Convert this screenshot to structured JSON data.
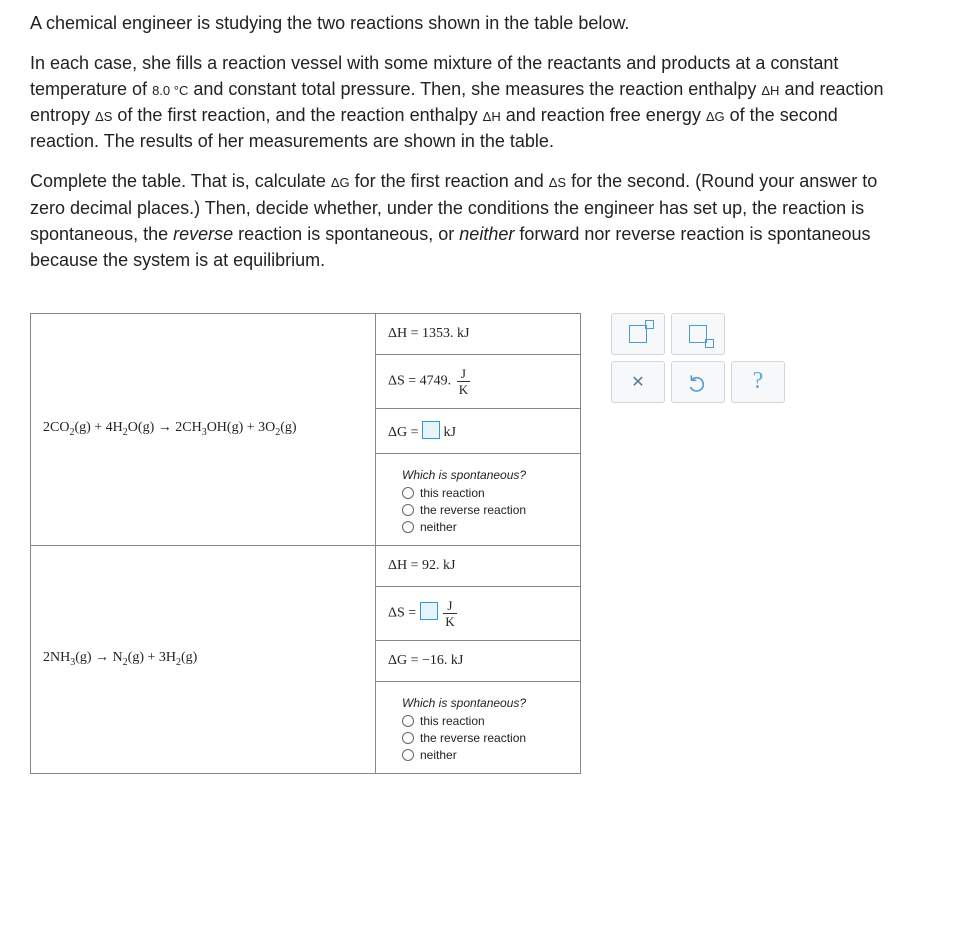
{
  "intro": {
    "p1a": "A chemical engineer is studying the two reactions shown in the table below.",
    "p2a": "In each case, she fills a reaction vessel with some mixture of the reactants and products at a constant temperature of ",
    "p2b": "8.0 °C",
    "p2c": " and constant total pressure. Then, she measures the reaction enthalpy ",
    "p2d": "ΔH",
    "p2e": " and reaction entropy ",
    "p2f": "ΔS",
    "p2g": " of the first reaction, and the reaction enthalpy ",
    "p2h": "ΔH",
    "p2i": " and reaction free energy ",
    "p2j": "ΔG",
    "p2k": " of the second reaction. The results of her measurements are shown in the table.",
    "p3a": "Complete the table. That is, calculate ",
    "p3b": "ΔG",
    "p3c": " for the first reaction and ",
    "p3d": "ΔS",
    "p3e": " for the second. (Round your answer to zero decimal places.) Then, decide whether, under the conditions the engineer has set up, the reaction is spontaneous, the ",
    "p3f": "reverse",
    "p3g": " reaction is spontaneous, or ",
    "p3h": "neither",
    "p3i": " forward nor reverse reaction is spontaneous because the system is at equilibrium."
  },
  "reactions": {
    "r1": {
      "equation_html": "2CO<sub>2</sub>(g) + 4H<sub>2</sub>O(g) → 2CH<sub>3</sub>OH(g) + 3O<sub>2</sub>(g)",
      "dH": "ΔH  =  1353. kJ",
      "dS_prefix": "ΔS  =  4749. ",
      "frac_num": "J",
      "frac_den": "K",
      "dG_prefix": "ΔG  =  ",
      "dG_suffix": " kJ",
      "spont_q": "Which is spontaneous?",
      "opt1": "this reaction",
      "opt2": "the reverse reaction",
      "opt3": "neither"
    },
    "r2": {
      "equation_html": "2NH<sub>3</sub>(g) → N<sub>2</sub>(g) + 3H<sub>2</sub>(g)",
      "dH": "ΔH  =  92. kJ",
      "dS_prefix": "ΔS  =  ",
      "frac_num": "J",
      "frac_den": "K",
      "dG": "ΔG  =  −16. kJ",
      "spont_q": "Which is spontaneous?",
      "opt1": "this reaction",
      "opt2": "the reverse reaction",
      "opt3": "neither"
    }
  },
  "tools": {
    "close": "✕",
    "help": "?"
  }
}
